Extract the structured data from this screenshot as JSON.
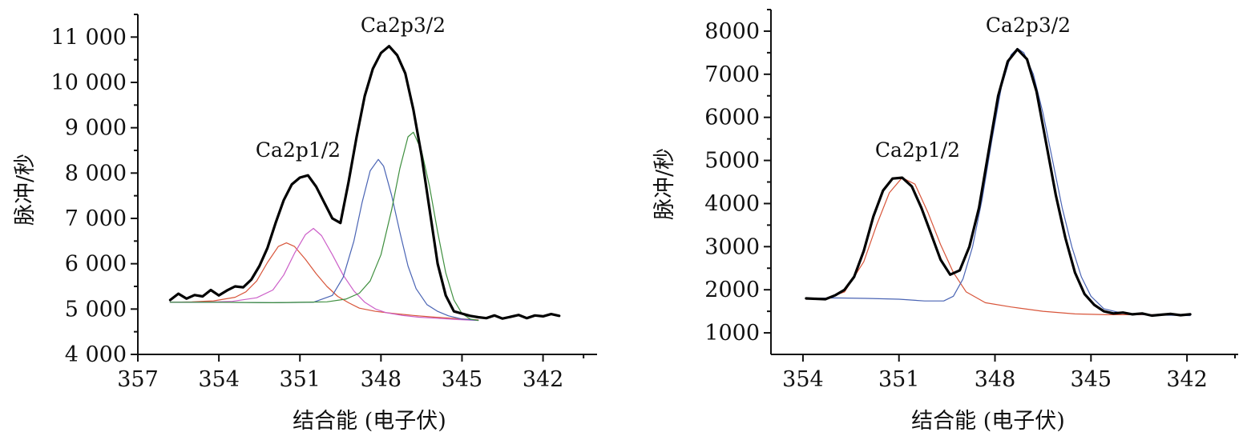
{
  "chart_data": [
    {
      "type": "line",
      "xlabel": "结合能 (电子伏)",
      "ylabel": "脉冲/秒",
      "xlim": [
        357,
        340
      ],
      "ylim": [
        4000,
        11500
      ],
      "x_reversed": true,
      "xticks": [
        357,
        354,
        351,
        348,
        345,
        342
      ],
      "xtick_labels": [
        "357",
        "354",
        "351",
        "348",
        "345",
        "342"
      ],
      "yticks": [
        4000,
        5000,
        6000,
        7000,
        8000,
        9000,
        10000,
        11000
      ],
      "ytick_labels": [
        "4 000",
        "5 000",
        "6 000",
        "7 000",
        "8 000",
        "9 000",
        "10 000",
        "11 000"
      ],
      "annotations": [
        {
          "text": "Ca2p1/2",
          "x": 350.4,
          "y": 8350
        },
        {
          "text": "Ca2p3/2",
          "x": 347.4,
          "y": 11200
        }
      ],
      "series": [
        {
          "color": "#000000",
          "width": 3.2,
          "x": [
            355.8,
            355.5,
            355.2,
            354.9,
            354.6,
            354.3,
            354.0,
            353.7,
            353.4,
            353.1,
            352.8,
            352.5,
            352.2,
            351.9,
            351.6,
            351.3,
            351.0,
            350.7,
            350.4,
            350.1,
            349.8,
            349.5,
            349.2,
            348.9,
            348.6,
            348.3,
            348.0,
            347.7,
            347.4,
            347.1,
            346.8,
            346.5,
            346.2,
            345.9,
            345.6,
            345.3,
            345.0,
            344.7,
            344.4,
            344.1,
            343.8,
            343.5,
            343.2,
            342.9,
            342.6,
            342.3,
            342.0,
            341.7,
            341.4
          ],
          "y": [
            5200,
            5340,
            5230,
            5310,
            5280,
            5420,
            5300,
            5410,
            5500,
            5480,
            5650,
            5950,
            6350,
            6900,
            7400,
            7750,
            7900,
            7950,
            7700,
            7350,
            7000,
            6900,
            7800,
            8800,
            9700,
            10300,
            10650,
            10800,
            10600,
            10200,
            9400,
            8400,
            7200,
            6000,
            5300,
            4950,
            4900,
            4850,
            4820,
            4800,
            4860,
            4790,
            4830,
            4870,
            4800,
            4860,
            4840,
            4890,
            4850
          ]
        },
        {
          "color": "#d8553a",
          "width": 1.2,
          "x": [
            355.8,
            355.0,
            354.2,
            353.4,
            353.0,
            352.6,
            352.2,
            351.8,
            351.5,
            351.2,
            350.8,
            350.4,
            350.0,
            349.6,
            349.2,
            348.8,
            348.2,
            347.5,
            346.8,
            346.0,
            345.2,
            344.4
          ],
          "y": [
            5150,
            5160,
            5180,
            5260,
            5380,
            5620,
            6030,
            6380,
            6460,
            6380,
            6100,
            5780,
            5500,
            5280,
            5140,
            5020,
            4950,
            4900,
            4860,
            4820,
            4790,
            4760
          ]
        },
        {
          "color": "#cc5fc8",
          "width": 1.2,
          "x": [
            355.8,
            354.5,
            353.5,
            352.6,
            352.0,
            351.6,
            351.2,
            350.8,
            350.5,
            350.2,
            349.8,
            349.4,
            349.0,
            348.6,
            348.2,
            347.8,
            347.2,
            346.6,
            346.0,
            345.2,
            344.4
          ],
          "y": [
            5150,
            5150,
            5170,
            5250,
            5420,
            5750,
            6230,
            6640,
            6780,
            6620,
            6200,
            5750,
            5400,
            5150,
            5000,
            4920,
            4860,
            4820,
            4800,
            4770,
            4750
          ]
        },
        {
          "color": "#4a64b4",
          "width": 1.2,
          "x": [
            355.8,
            354.0,
            352.0,
            350.5,
            349.8,
            349.4,
            349.0,
            348.7,
            348.4,
            348.1,
            347.9,
            347.6,
            347.3,
            347.0,
            346.7,
            346.3,
            345.9,
            345.5,
            345.0,
            344.4
          ],
          "y": [
            5150,
            5150,
            5140,
            5150,
            5300,
            5700,
            6500,
            7350,
            8050,
            8300,
            8150,
            7500,
            6700,
            5950,
            5450,
            5100,
            4950,
            4850,
            4780,
            4750
          ]
        },
        {
          "color": "#3f8f3f",
          "width": 1.2,
          "x": [
            355.8,
            354.0,
            352.0,
            350.0,
            349.3,
            348.8,
            348.4,
            348.0,
            347.6,
            347.3,
            347.0,
            346.8,
            346.5,
            346.2,
            345.9,
            345.6,
            345.3,
            345.0,
            344.7,
            344.4
          ],
          "y": [
            5150,
            5150,
            5140,
            5160,
            5220,
            5350,
            5620,
            6200,
            7200,
            8100,
            8800,
            8900,
            8500,
            7700,
            6700,
            5800,
            5200,
            4900,
            4780,
            4750
          ]
        }
      ]
    },
    {
      "type": "line",
      "xlabel": "结合能 (电子伏)",
      "ylabel": "脉冲/秒",
      "xlim": [
        355,
        340.4
      ],
      "ylim": [
        500,
        8500
      ],
      "x_reversed": true,
      "xticks": [
        354,
        351,
        348,
        345,
        342
      ],
      "xtick_labels": [
        "354",
        "351",
        "348",
        "345",
        "342"
      ],
      "yticks": [
        1000,
        2000,
        3000,
        4000,
        5000,
        6000,
        7000,
        8000
      ],
      "ytick_labels": [
        "1000",
        "2000",
        "3000",
        "4000",
        "5000",
        "6000",
        "7000",
        "8000"
      ],
      "annotations": [
        {
          "text": "Ca2p1/2",
          "x": 351.0,
          "y": 5000
        },
        {
          "text": "Ca2p3/2",
          "x": 347.0,
          "y": 8100
        }
      ],
      "series": [
        {
          "color": "#000000",
          "width": 3.2,
          "x": [
            353.9,
            353.6,
            353.3,
            353.0,
            352.7,
            352.4,
            352.1,
            351.8,
            351.5,
            351.2,
            350.9,
            350.6,
            350.3,
            350.0,
            349.7,
            349.4,
            349.1,
            348.8,
            348.5,
            348.2,
            347.9,
            347.6,
            347.3,
            347.0,
            346.7,
            346.4,
            346.1,
            345.8,
            345.5,
            345.2,
            344.9,
            344.6,
            344.3,
            344.0,
            343.7,
            343.4,
            343.1,
            342.8,
            342.5,
            342.2,
            341.9
          ],
          "y": [
            1800,
            1790,
            1780,
            1870,
            2000,
            2300,
            2900,
            3700,
            4300,
            4580,
            4600,
            4400,
            3900,
            3300,
            2700,
            2350,
            2450,
            3000,
            3900,
            5200,
            6500,
            7300,
            7580,
            7350,
            6600,
            5400,
            4200,
            3200,
            2400,
            1900,
            1650,
            1500,
            1450,
            1470,
            1430,
            1450,
            1400,
            1420,
            1440,
            1410,
            1430
          ]
        },
        {
          "color": "#d8553a",
          "width": 1.2,
          "x": [
            353.9,
            353.3,
            352.7,
            352.1,
            351.7,
            351.3,
            350.9,
            350.5,
            350.1,
            349.7,
            349.3,
            348.9,
            348.3,
            347.5,
            346.5,
            345.5,
            344.5,
            343.5,
            342.5,
            341.9
          ],
          "y": [
            1780,
            1800,
            1950,
            2650,
            3500,
            4250,
            4600,
            4450,
            3800,
            3050,
            2400,
            1950,
            1700,
            1600,
            1500,
            1440,
            1420,
            1420,
            1420,
            1420
          ]
        },
        {
          "color": "#4a64b4",
          "width": 1.2,
          "x": [
            353.9,
            353.0,
            352.0,
            351.0,
            350.2,
            349.6,
            349.3,
            349.0,
            348.7,
            348.4,
            348.1,
            347.8,
            347.5,
            347.3,
            347.1,
            346.8,
            346.5,
            346.2,
            345.9,
            345.6,
            345.3,
            345.0,
            344.6,
            344.0,
            343.3,
            342.6,
            341.9
          ],
          "y": [
            1800,
            1810,
            1800,
            1780,
            1740,
            1740,
            1850,
            2250,
            3000,
            4100,
            5450,
            6700,
            7450,
            7600,
            7500,
            7000,
            6100,
            5000,
            3900,
            3000,
            2300,
            1850,
            1560,
            1450,
            1420,
            1410,
            1400
          ]
        }
      ]
    }
  ]
}
